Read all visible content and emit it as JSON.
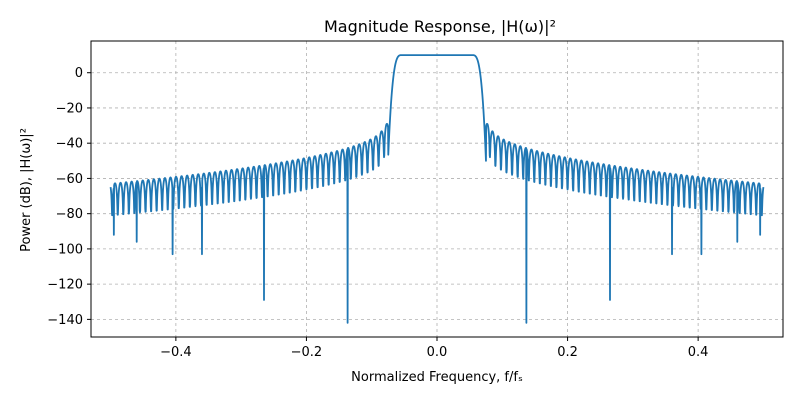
{
  "chart_data": {
    "type": "line",
    "title": "Magnitude Response, |H(ω)|²",
    "xlabel": "Normalized Frequency, f/fₛ",
    "ylabel": "Power (dB), |H(ω)|²",
    "xlim": [
      -0.53,
      0.53
    ],
    "ylim": [
      -150,
      18
    ],
    "xticks": [
      -0.4,
      -0.2,
      0.0,
      0.2,
      0.4
    ],
    "xtick_labels": [
      "−0.4",
      "−0.2",
      "0.0",
      "0.2",
      "0.4"
    ],
    "yticks": [
      0,
      -20,
      -40,
      -60,
      -80,
      -100,
      -120,
      -140
    ],
    "ytick_labels": [
      "0",
      "−20",
      "−40",
      "−60",
      "−80",
      "−100",
      "−120",
      "−140"
    ],
    "grid": true,
    "grid_style": "dashed",
    "color": "#1f77b4",
    "passband": {
      "edge": 0.075,
      "level": 10
    },
    "ripple_lobes": {
      "first_lobe_offset": 0.081,
      "lobe_spacing": 0.0085,
      "first_lobe_level": -29,
      "edge_lobe_level": -63
    },
    "deep_nulls": [
      {
        "x": -0.137,
        "y": -142
      },
      {
        "x": 0.137,
        "y": -142
      },
      {
        "x": -0.265,
        "y": -129
      },
      {
        "x": 0.265,
        "y": -129
      },
      {
        "x": -0.405,
        "y": -103
      },
      {
        "x": 0.405,
        "y": -103
      },
      {
        "x": -0.36,
        "y": -103
      },
      {
        "x": 0.36,
        "y": -103
      },
      {
        "x": -0.46,
        "y": -96
      },
      {
        "x": 0.46,
        "y": -96
      },
      {
        "x": -0.495,
        "y": -92
      },
      {
        "x": 0.495,
        "y": -92
      }
    ]
  }
}
